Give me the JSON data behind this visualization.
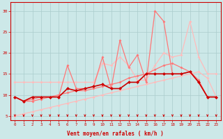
{
  "x": [
    0,
    1,
    2,
    3,
    4,
    5,
    6,
    7,
    8,
    9,
    10,
    11,
    12,
    13,
    14,
    15,
    16,
    17,
    18,
    19,
    20,
    21,
    22,
    23
  ],
  "series_dark_red": [
    9.5,
    8.5,
    9.5,
    9.5,
    9.5,
    9.5,
    11.5,
    11.0,
    11.5,
    12.0,
    12.5,
    11.5,
    11.5,
    13.0,
    13.0,
    15.0,
    15.0,
    15.0,
    15.0,
    15.0,
    15.5,
    13.0,
    9.5,
    9.5
  ],
  "series_med_spiky": [
    9.5,
    8.5,
    9.0,
    9.5,
    9.5,
    9.5,
    17.0,
    11.5,
    11.5,
    12.0,
    19.0,
    11.5,
    23.0,
    16.5,
    19.5,
    13.0,
    30.0,
    27.5,
    15.0,
    15.0,
    15.5,
    13.0,
    9.5,
    9.5
  ],
  "series_light_flat": [
    13.0,
    13.0,
    13.0,
    13.0,
    13.0,
    13.0,
    13.0,
    13.0,
    13.0,
    13.0,
    17.5,
    17.0,
    19.0,
    17.0,
    13.5,
    13.5,
    17.0,
    20.0,
    19.0,
    19.5,
    27.5,
    19.0,
    15.0,
    15.0
  ],
  "series_light_ramp": [
    5.0,
    5.5,
    6.0,
    6.5,
    7.0,
    7.5,
    8.0,
    8.5,
    9.0,
    9.5,
    10.0,
    10.5,
    11.0,
    11.5,
    12.0,
    12.5,
    13.0,
    13.5,
    14.0,
    14.5,
    15.0,
    15.5,
    14.0,
    9.5
  ],
  "series_med_ramp": [
    9.5,
    8.5,
    8.5,
    9.0,
    9.5,
    10.0,
    10.5,
    11.0,
    11.0,
    11.5,
    12.0,
    12.5,
    13.0,
    14.0,
    14.5,
    15.0,
    16.0,
    17.0,
    17.5,
    16.5,
    15.5,
    13.5,
    9.5,
    9.5
  ],
  "wind_directions": [
    225,
    225,
    180,
    180,
    180,
    180,
    180,
    180,
    180,
    180,
    180,
    180,
    135,
    135,
    135,
    135,
    135,
    135,
    135,
    135,
    135,
    135,
    135,
    135
  ],
  "color_dark": "#cc0000",
  "color_medium": "#ff7777",
  "color_light": "#ffbbbb",
  "background": "#cce8e8",
  "grid_color": "#aacccc",
  "xlabel": "Vent moyen/en rafales ( km/h )",
  "ylim": [
    4,
    32
  ],
  "xlim": [
    -0.5,
    23.5
  ],
  "yticks": [
    5,
    10,
    15,
    20,
    25,
    30
  ],
  "xticks": [
    0,
    1,
    2,
    3,
    4,
    5,
    6,
    7,
    8,
    9,
    10,
    11,
    12,
    13,
    14,
    15,
    16,
    17,
    18,
    19,
    20,
    21,
    22,
    23
  ]
}
